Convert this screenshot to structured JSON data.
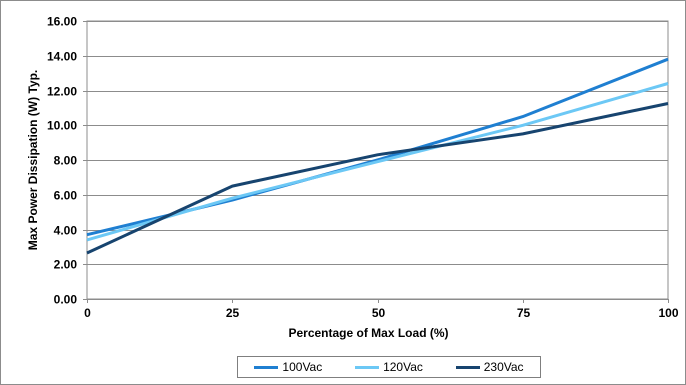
{
  "chart_data": {
    "type": "line",
    "title": "",
    "xlabel": "Percentage of Max Load (%)",
    "ylabel": "Max Power Dissipation (W) Typ.",
    "xlim": [
      0,
      100
    ],
    "ylim": [
      0,
      16
    ],
    "x_ticks": [
      0,
      25,
      50,
      75,
      100
    ],
    "x_tick_labels": [
      "0",
      "25",
      "50",
      "75",
      "100"
    ],
    "y_ticks": [
      0,
      2,
      4,
      6,
      8,
      10,
      12,
      14,
      16
    ],
    "y_tick_labels": [
      "0.00",
      "2.00",
      "4.00",
      "6.00",
      "8.00",
      "10.00",
      "12.00",
      "14.00",
      "16.00"
    ],
    "grid": true,
    "legend_position": "bottom",
    "x": [
      0,
      25,
      50,
      75,
      100
    ],
    "series": [
      {
        "name": "100Vac",
        "color": "#1f7fd1",
        "values": [
          3.7,
          5.7,
          8.0,
          10.5,
          13.8
        ]
      },
      {
        "name": "120Vac",
        "color": "#6cc8f5",
        "values": [
          3.4,
          5.8,
          7.9,
          10.0,
          12.4
        ]
      },
      {
        "name": "230Vac",
        "color": "#17446f",
        "values": [
          2.65,
          6.5,
          8.3,
          9.5,
          11.25
        ]
      }
    ]
  }
}
